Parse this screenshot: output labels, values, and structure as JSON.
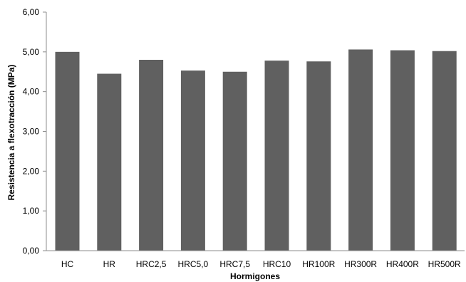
{
  "chart_data": {
    "type": "bar",
    "title": "",
    "xlabel": "Hormigones",
    "ylabel": "Resistencia a flexotracción (MPa)",
    "ylim": [
      0,
      6
    ],
    "yticks": [
      "0,00",
      "1,00",
      "2,00",
      "3,00",
      "4,00",
      "5,00",
      "6,00"
    ],
    "categories": [
      "HC",
      "HR",
      "HRC2,5",
      "HRC5,0",
      "HRC7,5",
      "HRC10",
      "HR100R",
      "HR300R",
      "HR400R",
      "HR500R"
    ],
    "values": [
      5.0,
      4.45,
      4.8,
      4.53,
      4.5,
      4.78,
      4.76,
      5.06,
      5.04,
      5.02
    ],
    "bar_color": "#606060",
    "grid": false,
    "legend": "none"
  }
}
